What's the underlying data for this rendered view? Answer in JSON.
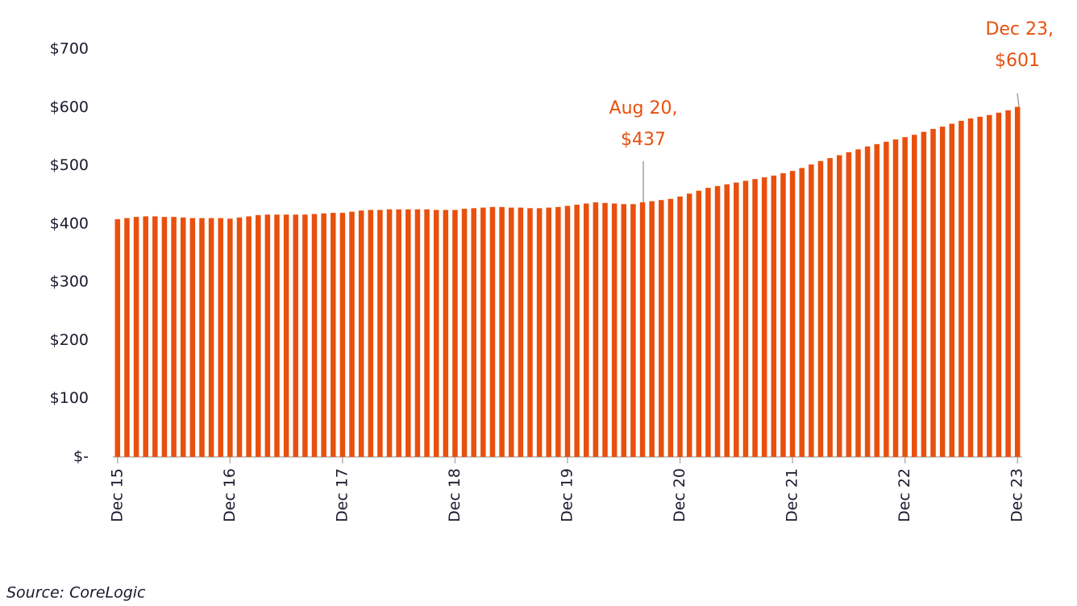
{
  "chart_data": {
    "type": "bar",
    "categories": [
      "Dec 15",
      null,
      null,
      null,
      null,
      null,
      null,
      null,
      null,
      null,
      null,
      null,
      "Dec 16",
      null,
      null,
      null,
      null,
      null,
      null,
      null,
      null,
      null,
      null,
      null,
      "Dec 17",
      null,
      null,
      null,
      null,
      null,
      null,
      null,
      null,
      null,
      null,
      null,
      "Dec 18",
      null,
      null,
      null,
      null,
      null,
      null,
      null,
      null,
      null,
      null,
      null,
      "Dec 19",
      null,
      null,
      null,
      null,
      null,
      null,
      null,
      null,
      null,
      null,
      null,
      "Dec 20",
      null,
      null,
      null,
      null,
      null,
      null,
      null,
      null,
      null,
      null,
      null,
      "Dec 21",
      null,
      null,
      null,
      null,
      null,
      null,
      null,
      null,
      null,
      null,
      null,
      "Dec 22",
      null,
      null,
      null,
      null,
      null,
      null,
      null,
      null,
      null,
      null,
      null,
      "Dec 23"
    ],
    "values": [
      408,
      410,
      412,
      413,
      413,
      412,
      412,
      411,
      410,
      410,
      410,
      410,
      409,
      411,
      413,
      415,
      416,
      416,
      416,
      416,
      416,
      417,
      418,
      419,
      419,
      421,
      423,
      424,
      424,
      425,
      425,
      425,
      425,
      425,
      424,
      424,
      424,
      426,
      427,
      428,
      429,
      429,
      428,
      428,
      427,
      427,
      428,
      429,
      431,
      433,
      435,
      437,
      436,
      435,
      434,
      434,
      437,
      439,
      441,
      443,
      447,
      452,
      457,
      462,
      465,
      468,
      471,
      474,
      477,
      480,
      483,
      487,
      491,
      496,
      502,
      508,
      513,
      518,
      523,
      528,
      533,
      537,
      541,
      545,
      549,
      553,
      558,
      563,
      567,
      572,
      577,
      581,
      584,
      587,
      591,
      595,
      601
    ],
    "color": "#e8500e",
    "ylim": [
      0,
      700
    ],
    "yticks": [
      {
        "value": 0,
        "label": "$-"
      },
      {
        "value": 100,
        "label": "$100"
      },
      {
        "value": 200,
        "label": "$200"
      },
      {
        "value": 300,
        "label": "$300"
      },
      {
        "value": 400,
        "label": "$400"
      },
      {
        "value": 500,
        "label": "$500"
      },
      {
        "value": 600,
        "label": "$600"
      },
      {
        "value": 700,
        "label": "$700"
      }
    ],
    "annotations": [
      {
        "lines": [
          "Aug 20,",
          "$437"
        ]
      },
      {
        "lines": [
          "Dec 23,",
          "$601"
        ]
      }
    ],
    "source": "Source: CoreLogic"
  }
}
